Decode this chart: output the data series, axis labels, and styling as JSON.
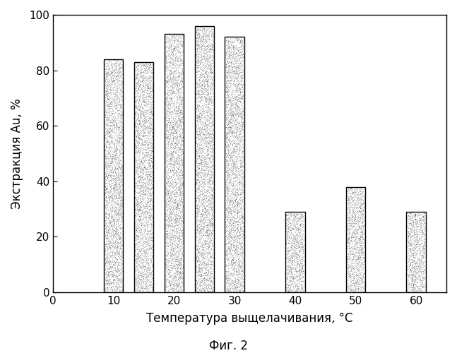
{
  "categories": [
    10,
    15,
    20,
    25,
    30,
    40,
    50,
    60
  ],
  "values": [
    84,
    83,
    93,
    96,
    92,
    29,
    38,
    29
  ],
  "bar_width": 3.2,
  "xlim": [
    0,
    65
  ],
  "ylim": [
    0,
    100
  ],
  "xticks": [
    0,
    10,
    20,
    30,
    40,
    50,
    60
  ],
  "yticks": [
    0,
    20,
    40,
    60,
    80,
    100
  ],
  "xlabel": "Температура выщелачивания, °C",
  "ylabel": "Экстракция Au, %",
  "caption": "Фиг. 2",
  "bar_edgecolor": "#000000",
  "xlabel_fontsize": 12,
  "ylabel_fontsize": 12,
  "tick_fontsize": 11,
  "caption_fontsize": 12,
  "background_color": "#ffffff",
  "figsize": [
    6.47,
    5.0
  ],
  "dpi": 100
}
